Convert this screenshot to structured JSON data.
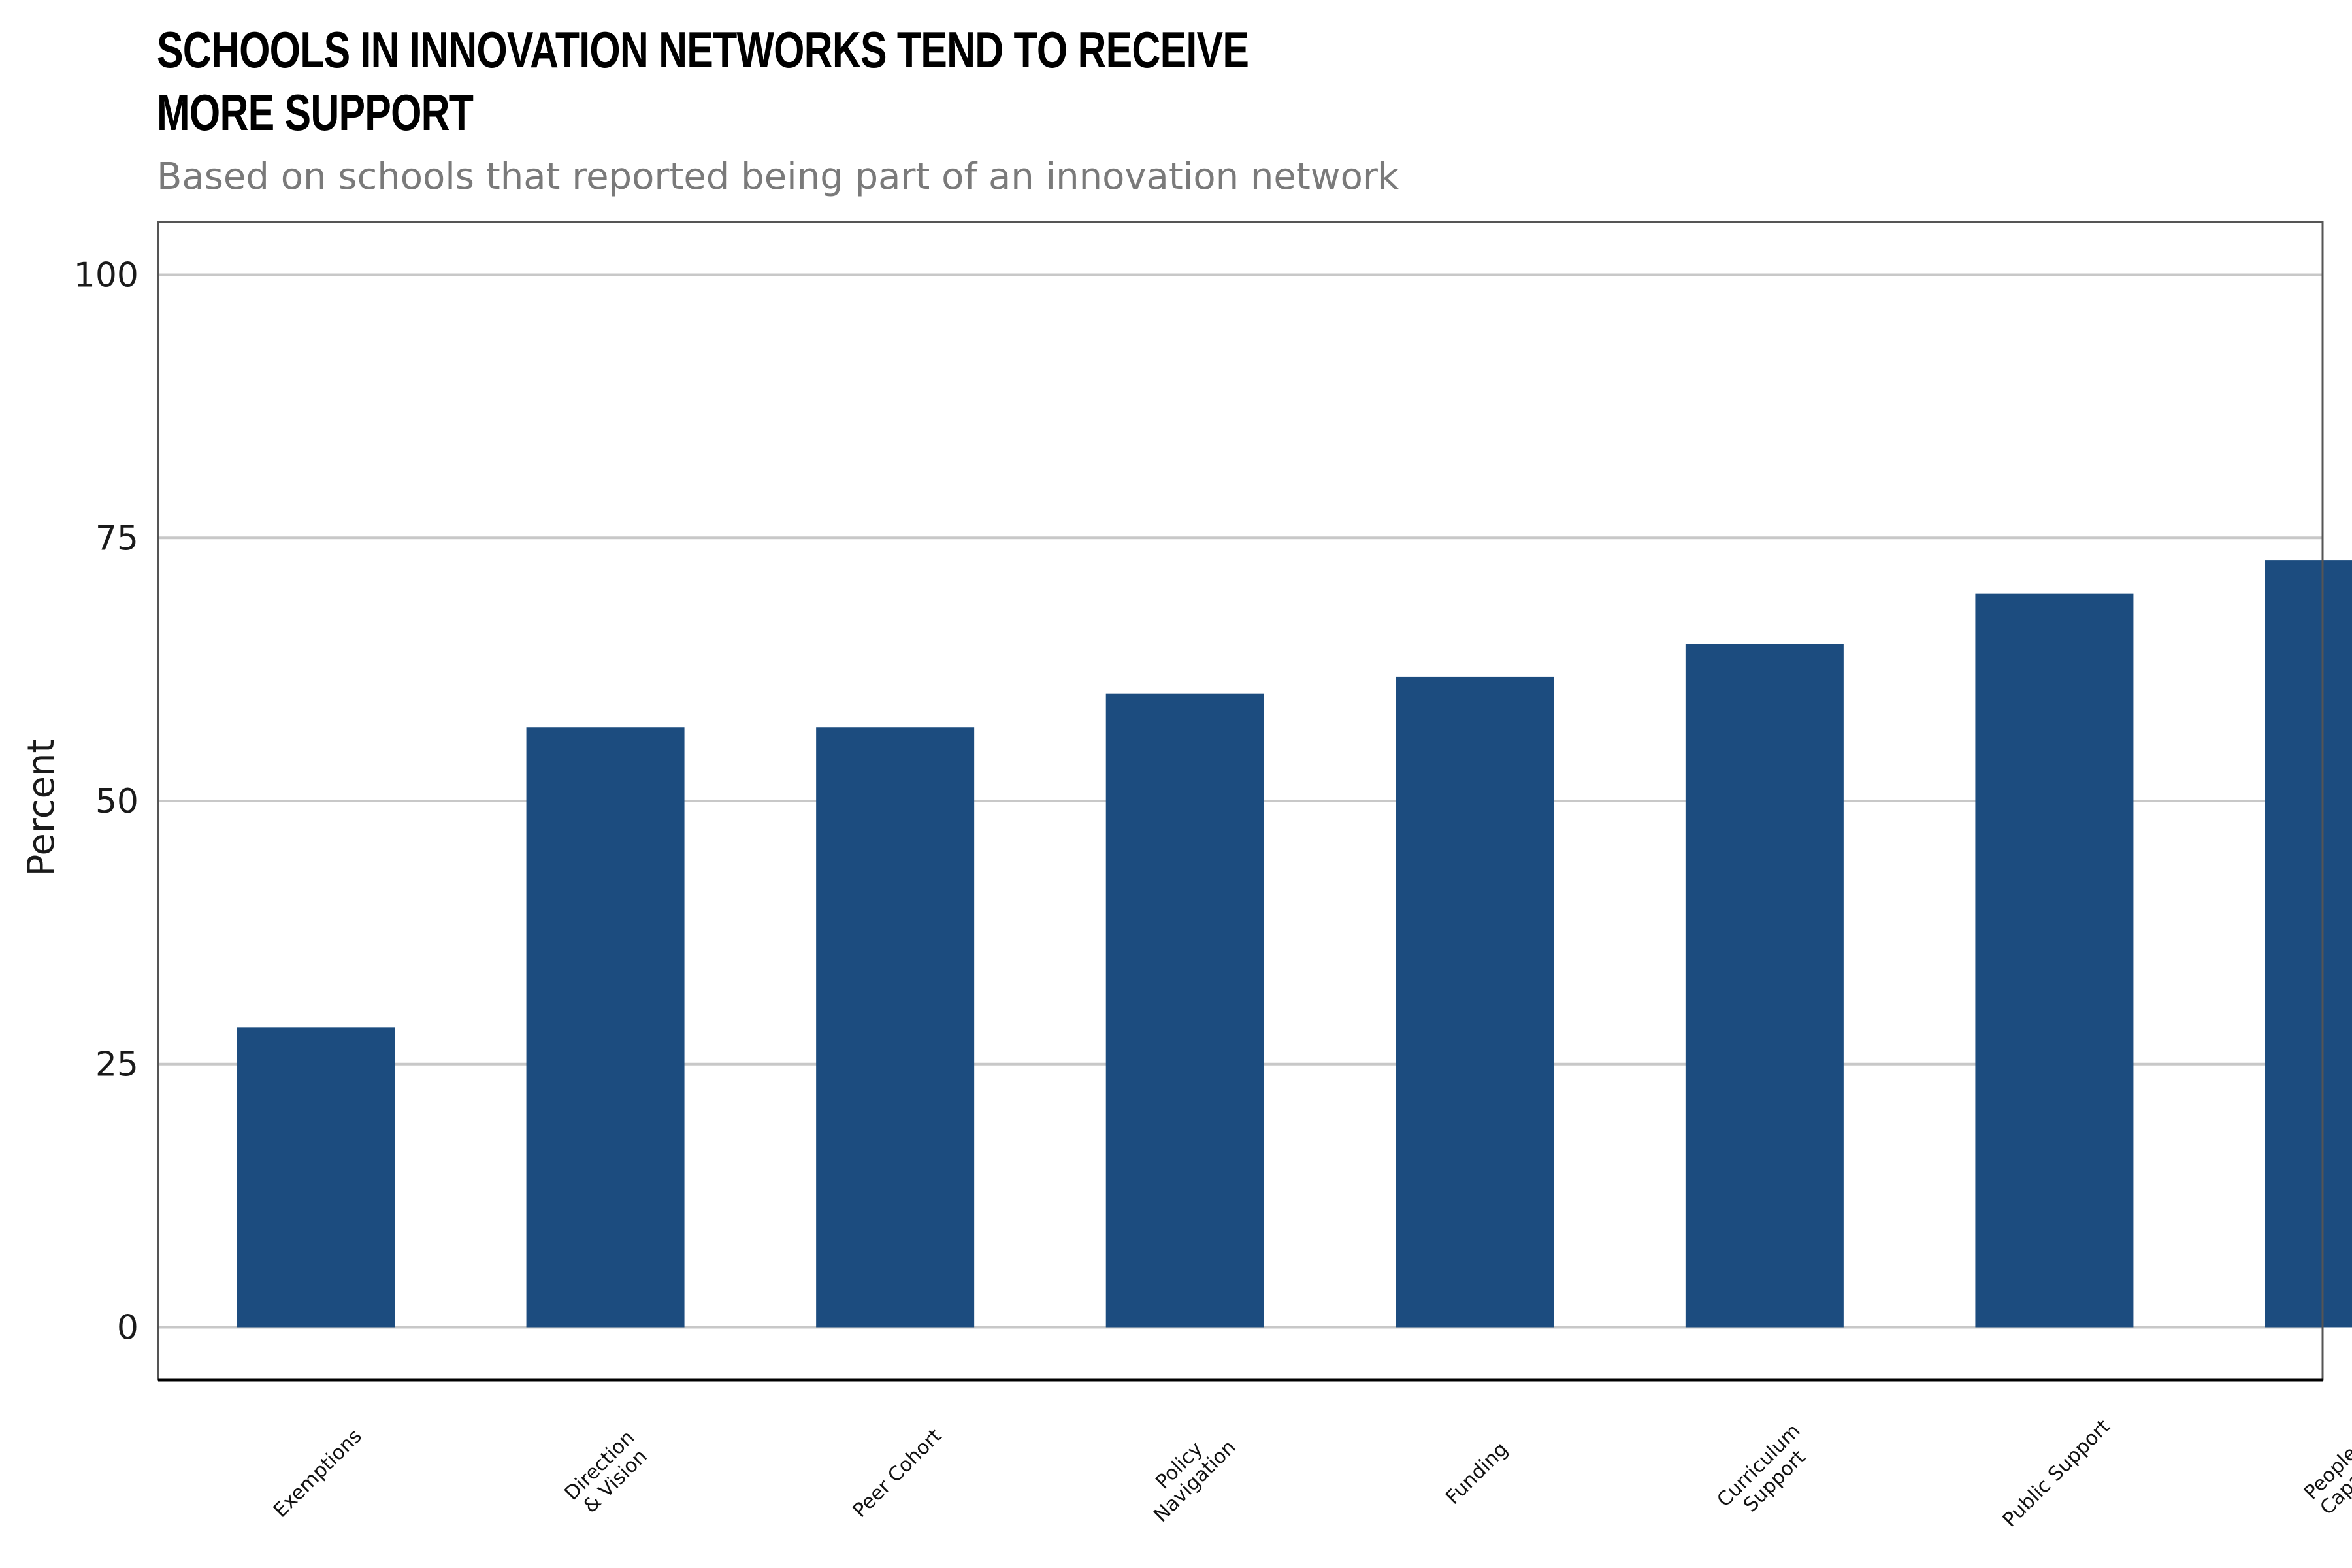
{
  "title_lines": [
    "SCHOOLS IN INNOVATION NETWORKS TEND TO RECEIVE",
    "MORE SUPPORT"
  ],
  "subtitle": "Based on schools that reported being part of an innovation network",
  "colors": {
    "bar": "#1c4c7f",
    "grid": "#c8c8c8",
    "axis": "#000000",
    "frame": "#555555"
  },
  "chart_data": {
    "type": "bar",
    "title": "SCHOOLS IN INNOVATION NETWORKS TEND TO RECEIVE MORE SUPPORT",
    "subtitle": "Based on schools that reported being part of an innovation network",
    "xlabel": "",
    "ylabel": "Percent",
    "ylim": [
      -5,
      105
    ],
    "yticks": [
      0,
      25,
      50,
      75,
      100
    ],
    "grid": true,
    "categories": [
      [
        "Exemptions"
      ],
      [
        "Direction",
        "& Vision"
      ],
      [
        "Peer Cohort"
      ],
      [
        "Policy",
        "Navigation"
      ],
      [
        "Funding"
      ],
      [
        "Curriculum",
        "Support"
      ],
      [
        "Public Support"
      ],
      [
        "People &",
        "Capacity"
      ]
    ],
    "values": [
      28.5,
      57,
      57,
      60.2,
      61.8,
      64.9,
      69.7,
      72.9
    ]
  }
}
